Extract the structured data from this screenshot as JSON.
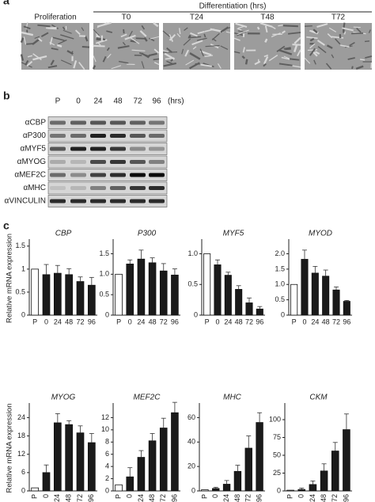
{
  "panel_a": {
    "label": "a",
    "group_title": "Differentiation (hrs)",
    "images": [
      "Proliferation",
      "T0",
      "T24",
      "T48",
      "T72"
    ]
  },
  "panel_b": {
    "label": "b",
    "lanes": [
      "P",
      "0",
      "24",
      "48",
      "72",
      "96"
    ],
    "unit": "(hrs)",
    "rows": [
      "αCBP",
      "αP300",
      "αMYF5",
      "αMYOG",
      "αMEF2C",
      "αMHC",
      "αVINCULIN"
    ]
  },
  "panel_c": {
    "label": "c"
  },
  "chart_data": [
    {
      "type": "bar",
      "title": "CBP",
      "ylabel": "Relative mRNA expression",
      "categories": [
        "P",
        "0",
        "24",
        "48",
        "72",
        "96"
      ],
      "values": [
        1.0,
        0.88,
        0.91,
        0.88,
        0.73,
        0.65
      ],
      "errors": [
        null,
        0.22,
        0.17,
        0.13,
        0.1,
        0.17
      ],
      "colors": [
        "#ffffff",
        "#1a1a1a",
        "#1a1a1a",
        "#1a1a1a",
        "#1a1a1a",
        "#1a1a1a"
      ],
      "ylim": [
        0,
        1.6
      ],
      "yticks": [
        0,
        0.5,
        1,
        1.5
      ]
    },
    {
      "type": "bar",
      "title": "P300",
      "categories": [
        "P",
        "0",
        "24",
        "48",
        "72",
        "96"
      ],
      "values": [
        1.0,
        1.25,
        1.37,
        1.28,
        1.08,
        0.98
      ],
      "errors": [
        null,
        0.1,
        0.22,
        0.12,
        0.18,
        0.15
      ],
      "colors": [
        "#ffffff",
        "#1a1a1a",
        "#1a1a1a",
        "#1a1a1a",
        "#1a1a1a",
        "#1a1a1a"
      ],
      "ylim": [
        0,
        1.8
      ],
      "yticks": [
        0,
        0.5,
        {
          "value": 1,
          "label": "1.0"
        },
        1.5
      ]
    },
    {
      "type": "bar",
      "title": "MYF5",
      "categories": [
        "P",
        "0",
        "24",
        "48",
        "72",
        "96"
      ],
      "values": [
        1.0,
        0.82,
        0.65,
        0.42,
        0.2,
        0.1
      ],
      "errors": [
        null,
        0.08,
        0.05,
        0.06,
        0.08,
        0.04
      ],
      "colors": [
        "#ffffff",
        "#1a1a1a",
        "#1a1a1a",
        "#1a1a1a",
        "#1a1a1a",
        "#1a1a1a"
      ],
      "ylim": [
        0,
        1.2
      ],
      "yticks": [
        0,
        0.5,
        {
          "value": 1,
          "label": "1.0"
        }
      ]
    },
    {
      "type": "bar",
      "title": "MYOD",
      "categories": [
        "P",
        "0",
        "24",
        "48",
        "72",
        "96"
      ],
      "values": [
        1.0,
        1.82,
        1.37,
        1.27,
        0.82,
        0.45
      ],
      "errors": [
        null,
        0.3,
        0.22,
        0.2,
        0.1,
        0.03
      ],
      "colors": [
        "#ffffff",
        "#1a1a1a",
        "#1a1a1a",
        "#1a1a1a",
        "#1a1a1a",
        "#1a1a1a"
      ],
      "ylim": [
        0,
        2.4
      ],
      "yticks": [
        0,
        0.5,
        {
          "value": 1,
          "label": "1.0"
        },
        1.5,
        {
          "value": 2,
          "label": "2.0"
        }
      ]
    },
    {
      "type": "bar",
      "title": "MYOG",
      "ylabel": "Relative mRNA expression",
      "categories": [
        "P",
        "0",
        "24",
        "48",
        "72",
        "96"
      ],
      "values": [
        1,
        6,
        22.3,
        21.7,
        19,
        15.8
      ],
      "errors": [
        null,
        2.5,
        3,
        1.3,
        2.3,
        3
      ],
      "colors": [
        "#ffffff",
        "#1a1a1a",
        "#1a1a1a",
        "#1a1a1a",
        "#1a1a1a",
        "#1a1a1a"
      ],
      "ylim": [
        0,
        28
      ],
      "yticks": [
        0,
        6,
        12,
        18,
        24
      ]
    },
    {
      "type": "bar",
      "title": "MEF2C",
      "categories": [
        "P",
        "0",
        "24",
        "48",
        "72",
        "96"
      ],
      "values": [
        1,
        2.3,
        5.5,
        8.2,
        10.3,
        12.8
      ],
      "errors": [
        null,
        1.5,
        1.1,
        1.2,
        1.6,
        1.7
      ],
      "colors": [
        "#ffffff",
        "#1a1a1a",
        "#1a1a1a",
        "#1a1a1a",
        "#1a1a1a",
        "#1a1a1a"
      ],
      "ylim": [
        0,
        14
      ],
      "yticks": [
        0,
        2,
        4,
        6,
        8,
        10,
        12
      ]
    },
    {
      "type": "bar",
      "title": "MHC",
      "categories": [
        "P",
        "0",
        "24",
        "48",
        "72",
        "96"
      ],
      "values": [
        1,
        2,
        5.5,
        16,
        35,
        56
      ],
      "errors": [
        null,
        1,
        3,
        5,
        10,
        8
      ],
      "colors": [
        "#ffffff",
        "#1a1a1a",
        "#1a1a1a",
        "#1a1a1a",
        "#1a1a1a",
        "#1a1a1a"
      ],
      "ylim": [
        0,
        70
      ],
      "yticks": [
        0,
        20,
        40,
        60
      ]
    },
    {
      "type": "bar",
      "title": "CKM",
      "categories": [
        "P",
        "0",
        "24",
        "48",
        "72",
        "96"
      ],
      "values": [
        1,
        2,
        9,
        28,
        56,
        86
      ],
      "errors": [
        null,
        2,
        5,
        10,
        12,
        22
      ],
      "colors": [
        "#ffffff",
        "#1a1a1a",
        "#1a1a1a",
        "#1a1a1a",
        "#1a1a1a",
        "#1a1a1a"
      ],
      "ylim": [
        0,
        120
      ],
      "yticks": [
        0,
        25,
        50,
        75,
        100
      ]
    }
  ]
}
